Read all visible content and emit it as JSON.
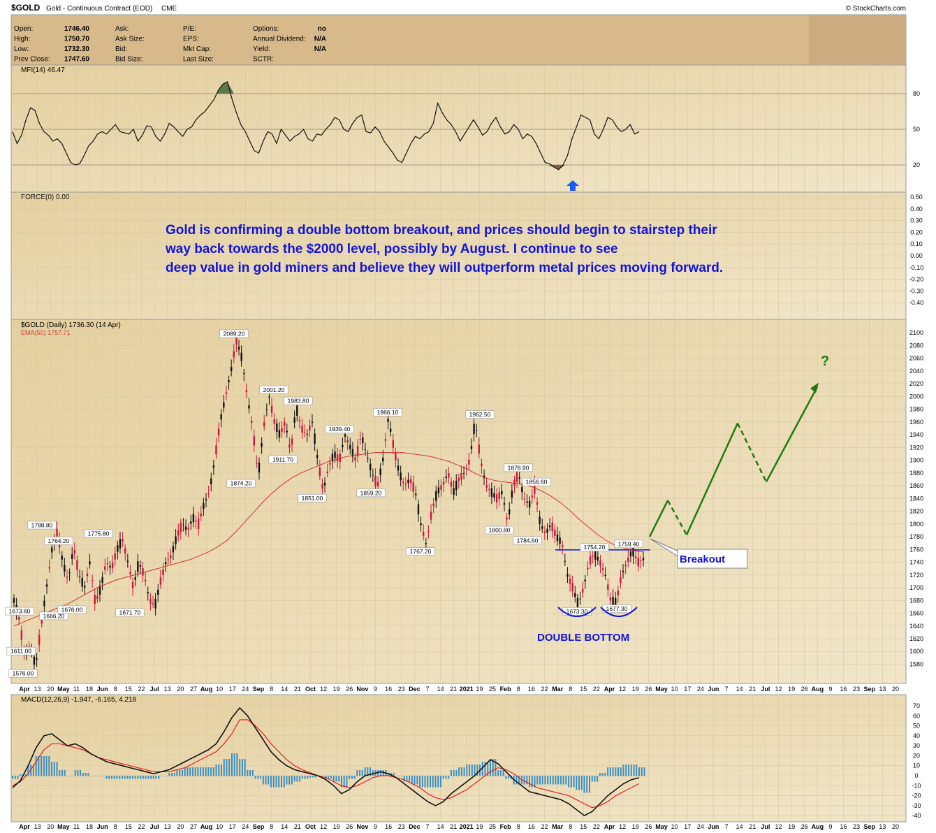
{
  "header": {
    "symbol": "$GOLD",
    "name": "Gold - Continuous Contract (EOD)",
    "exchange": "CME",
    "source": "© StockCharts.com"
  },
  "quote": [
    {
      "label": "Open:",
      "value": "1746.40"
    },
    {
      "label": "High:",
      "value": "1750.70"
    },
    {
      "label": "Low:",
      "value": "1732.30"
    },
    {
      "label": "Prev Close:",
      "value": "1747.60"
    },
    {
      "label": "Ask:",
      "value": ""
    },
    {
      "label": "Ask Size:",
      "value": ""
    },
    {
      "label": "Bid:",
      "value": ""
    },
    {
      "label": "Bid Size:",
      "value": ""
    },
    {
      "label": "P/E:",
      "value": ""
    },
    {
      "label": "EPS:",
      "value": ""
    },
    {
      "label": "Mkt Cap:",
      "value": ""
    },
    {
      "label": "Last Size:",
      "value": ""
    },
    {
      "label": "Options:",
      "value": "no"
    },
    {
      "label": "Annual Dividend:",
      "value": "N/A"
    },
    {
      "label": "Yield:",
      "value": "N/A"
    },
    {
      "label": "SCTR:",
      "value": ""
    }
  ],
  "colors": {
    "panel_bg": "#e9d9b2",
    "header_bg": "#d8b98b",
    "up": "#111111",
    "down": "#d4123c",
    "ema": "#d23030",
    "projection": "#1f7a10",
    "annotation": "#1414d8",
    "macd_hist": "#3a8fc4"
  },
  "chart_data": [
    {
      "type": "line",
      "panel": "mfi",
      "label": "MFI(14) 46.47",
      "ylim": [
        0,
        100
      ],
      "levels": [
        20,
        50,
        80
      ],
      "values": [
        48,
        38,
        45,
        58,
        68,
        66,
        55,
        48,
        45,
        40,
        42,
        38,
        30,
        22,
        20,
        21,
        28,
        36,
        40,
        46,
        48,
        46,
        50,
        54,
        48,
        47,
        46,
        50,
        40,
        45,
        53,
        52,
        44,
        40,
        46,
        55,
        52,
        48,
        44,
        50,
        52,
        58,
        62,
        65,
        70,
        75,
        83,
        88,
        90,
        76,
        64,
        54,
        48,
        40,
        32,
        30,
        40,
        48,
        46,
        38,
        50,
        45,
        40,
        44,
        46,
        50,
        42,
        40,
        46,
        45,
        50,
        54,
        60,
        58,
        50,
        48,
        55,
        60,
        62,
        48,
        47,
        52,
        48,
        40,
        35,
        30,
        24,
        22,
        30,
        38,
        44,
        42,
        46,
        48,
        55,
        72,
        64,
        58,
        54,
        48,
        40,
        46,
        52,
        58,
        52,
        45,
        48,
        55,
        60,
        52,
        46,
        48,
        54,
        50,
        42,
        46,
        44,
        38,
        30,
        22,
        21,
        18,
        16,
        20,
        28,
        42,
        52,
        62,
        60,
        58,
        46,
        42,
        50,
        60,
        58,
        52,
        48,
        50,
        54,
        46,
        48
      ]
    },
    {
      "type": "line",
      "panel": "force",
      "label": "FORCE(0) 0.00",
      "ylim": [
        -0.5,
        0.5
      ],
      "ticks": [
        "0.50",
        "0.40",
        "0.30",
        "0.20",
        "0.10",
        "0.00",
        "-0.10",
        "-0.20",
        "-0.30",
        "-0.40"
      ],
      "values": []
    },
    {
      "type": "candlestick",
      "panel": "price",
      "label": "$GOLD (Daily) 1736.30 (14 Apr)",
      "ema_label": "EMA(50) 1757.71",
      "ylim": [
        1563,
        2110
      ],
      "y_ticks": [
        "2100",
        "2080",
        "2060",
        "2040",
        "2020",
        "2000",
        "1980",
        "1960",
        "1940",
        "1920",
        "1900",
        "1880",
        "1860",
        "1840",
        "1820",
        "1800",
        "1780",
        "1760",
        "1740",
        "1720",
        "1700",
        "1680",
        "1660",
        "1640",
        "1620",
        "1600",
        "1580"
      ],
      "price_path": [
        1680,
        1650,
        1590,
        1611,
        1576,
        1640,
        1700,
        1760,
        1788.8,
        1740,
        1710,
        1764.2,
        1720,
        1700,
        1740,
        1676,
        1700,
        1740,
        1730,
        1760,
        1775.8,
        1740,
        1700,
        1740,
        1720,
        1680,
        1671.7,
        1710,
        1740,
        1750,
        1780,
        1800,
        1790,
        1810,
        1800,
        1830,
        1850,
        1900,
        1960,
        2000,
        2040,
        2089.2,
        2060,
        2000,
        1950,
        1874.2,
        1950,
        2001.2,
        1960,
        1940,
        1960,
        1911.7,
        1983.8,
        1950,
        1940,
        1960,
        1900,
        1851,
        1890,
        1910,
        1900,
        1939.4,
        1920,
        1900,
        1940,
        1910,
        1880,
        1859.2,
        1900,
        1966.1,
        1920,
        1880,
        1860,
        1870,
        1850,
        1800,
        1767.2,
        1820,
        1850,
        1860,
        1880,
        1850,
        1870,
        1880,
        1900,
        1962.5,
        1900,
        1860,
        1850,
        1840,
        1850,
        1800.8,
        1860,
        1878.9,
        1840,
        1830,
        1856.6,
        1800,
        1784.6,
        1800,
        1780,
        1770,
        1720,
        1700,
        1673.3,
        1700,
        1740,
        1754.2,
        1740,
        1720,
        1680,
        1677.3,
        1720,
        1740,
        1759.4,
        1740,
        1745
      ],
      "ema": [
        1640,
        1646,
        1652,
        1658,
        1664,
        1670,
        1676,
        1684,
        1692,
        1700,
        1706,
        1712,
        1716,
        1720,
        1724,
        1728,
        1732,
        1736,
        1740,
        1744,
        1750,
        1756,
        1764,
        1774,
        1788,
        1804,
        1820,
        1836,
        1850,
        1862,
        1872,
        1880,
        1886,
        1892,
        1898,
        1902,
        1906,
        1908,
        1910,
        1912,
        1912,
        1912,
        1912,
        1910,
        1908,
        1906,
        1902,
        1898,
        1892,
        1886,
        1878,
        1872,
        1868,
        1866,
        1864,
        1862,
        1858,
        1852,
        1844,
        1834,
        1822,
        1808,
        1796,
        1784,
        1774,
        1766,
        1762,
        1758,
        1756
      ],
      "price_labels": [
        "1611.00",
        "1576.00",
        "1673.60",
        "1788.80",
        "1764.20",
        "1666.20",
        "1676.00",
        "1775.80",
        "1671.70",
        "2089.20",
        "1874.20",
        "2001.20",
        "1911.70",
        "1983.80",
        "1851.00",
        "1939.40",
        "1859.20",
        "1966.10",
        "1767.20",
        "1962.50",
        "1800.80",
        "1878.90",
        "1784.60",
        "1856.60",
        "1754.20",
        "1759.40",
        "1673.30",
        "1677.30"
      ],
      "x_ticks": [
        "Apr",
        "13",
        "20",
        "May",
        "11",
        "18",
        "Jun",
        "8",
        "15",
        "22",
        "Jul",
        "13",
        "20",
        "27",
        "Aug",
        "10",
        "17",
        "24",
        "Sep",
        "8",
        "14",
        "21",
        "Oct",
        "12",
        "19",
        "26",
        "Nov",
        "9",
        "16",
        "23",
        "Dec",
        "7",
        "14",
        "21",
        "2021",
        "19",
        "25",
        "Feb",
        "8",
        "16",
        "22",
        "Mar",
        "8",
        "15",
        "22",
        "Apr",
        "12",
        "19",
        "26",
        "May",
        "10",
        "17",
        "24",
        "Jun",
        "7",
        "14",
        "21",
        "Jul",
        "12",
        "19",
        "26",
        "Aug",
        "9",
        "16",
        "23",
        "Sep",
        "13",
        "20"
      ],
      "projection": [
        1780,
        1837,
        1783,
        1958,
        1866,
        2015
      ],
      "annotations": {
        "commentary": "Gold is confirming a double bottom breakout, and prices should begin to stairstep their way back towards the $2000 level, possibly by August. I continue to see deep value in gold miners and believe they will outperform metal prices moving forward.",
        "breakout": "Breakout",
        "double_bottom": "DOUBLE BOTTOM",
        "question": "?",
        "breakout_level": 1759.4
      }
    },
    {
      "type": "line",
      "panel": "macd",
      "label": "MACD(12,26,9) -1.947, -6.165, 4.218",
      "ylim": [
        -42,
        70
      ],
      "y_ticks": [
        "70",
        "60",
        "50",
        "40",
        "30",
        "20",
        "10",
        "0",
        "-10",
        "-20",
        "-30",
        "-40"
      ],
      "macd": [
        -12,
        -5,
        10,
        28,
        40,
        42,
        36,
        30,
        32,
        28,
        22,
        18,
        14,
        12,
        10,
        8,
        6,
        4,
        2,
        4,
        6,
        10,
        14,
        18,
        22,
        26,
        32,
        44,
        58,
        68,
        60,
        48,
        36,
        24,
        16,
        10,
        6,
        4,
        2,
        0,
        -4,
        -10,
        -18,
        -14,
        -6,
        0,
        2,
        4,
        2,
        -2,
        -8,
        -14,
        -20,
        -26,
        -30,
        -26,
        -18,
        -12,
        -6,
        0,
        8,
        16,
        12,
        4,
        -4,
        -10,
        -16,
        -18,
        -20,
        -22,
        -24,
        -28,
        -34,
        -40,
        -36,
        -28,
        -20,
        -14,
        -8,
        -4,
        -2
      ],
      "signal": [
        -10,
        -6,
        2,
        14,
        26,
        32,
        32,
        30,
        28,
        26,
        22,
        18,
        16,
        14,
        12,
        10,
        8,
        6,
        4,
        4,
        4,
        6,
        8,
        12,
        16,
        20,
        24,
        32,
        42,
        56,
        56,
        50,
        42,
        32,
        24,
        16,
        10,
        6,
        3,
        0,
        -2,
        -6,
        -10,
        -12,
        -10,
        -6,
        -2,
        0,
        0,
        -2,
        -4,
        -8,
        -12,
        -18,
        -22,
        -24,
        -22,
        -18,
        -14,
        -8,
        -2,
        4,
        8,
        6,
        2,
        -4,
        -8,
        -12,
        -14,
        -16,
        -18,
        -20,
        -24,
        -28,
        -32,
        -30,
        -26,
        -20,
        -16,
        -12,
        -8
      ]
    }
  ]
}
